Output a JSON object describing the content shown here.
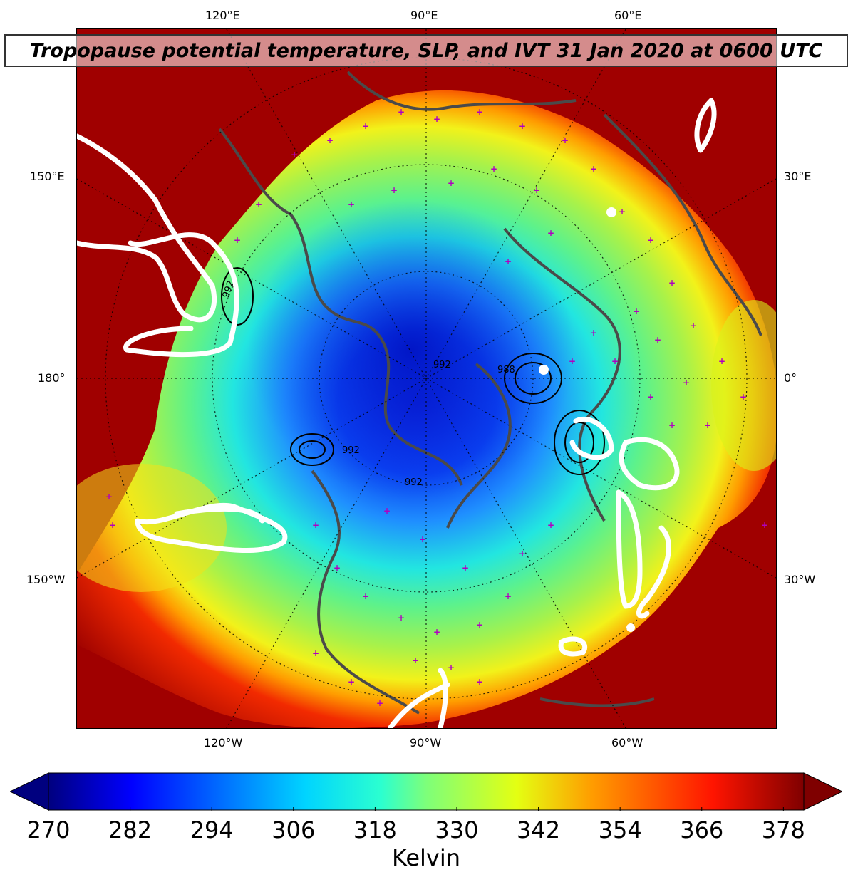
{
  "title": "Tropopause potential temperature, SLP, and IVT 31 Jan 2020 at 0600 UTC",
  "map": {
    "projection": "north-polar-stereographic",
    "top_lon_labels": [
      "120°E",
      "90°E",
      "60°E"
    ],
    "bottom_lon_labels": [
      "120°W",
      "90°W",
      "60°W"
    ],
    "left_lon_labels": [
      "150°E",
      "180°",
      "150°W"
    ],
    "right_lon_labels": [
      "30°E",
      "0°",
      "30°W"
    ],
    "slp_contour_labels": [
      "992",
      "992",
      "992",
      "988",
      "992"
    ],
    "layers": [
      "tropopause-potential-temperature-fill",
      "slp-contours",
      "ivt-white-contours",
      "coastlines",
      "station-markers"
    ],
    "colors": {
      "station_marker": "#b000c0",
      "ivt_contour": "#ffffff",
      "coastline": "#4a4a4a",
      "slp_contour": "#000000"
    }
  },
  "colorbar": {
    "colormap": "jet",
    "extend": "both",
    "ticks": [
      "270",
      "282",
      "294",
      "306",
      "318",
      "330",
      "342",
      "354",
      "366",
      "378"
    ],
    "min": 270,
    "max": 381,
    "label": "Kelvin"
  }
}
